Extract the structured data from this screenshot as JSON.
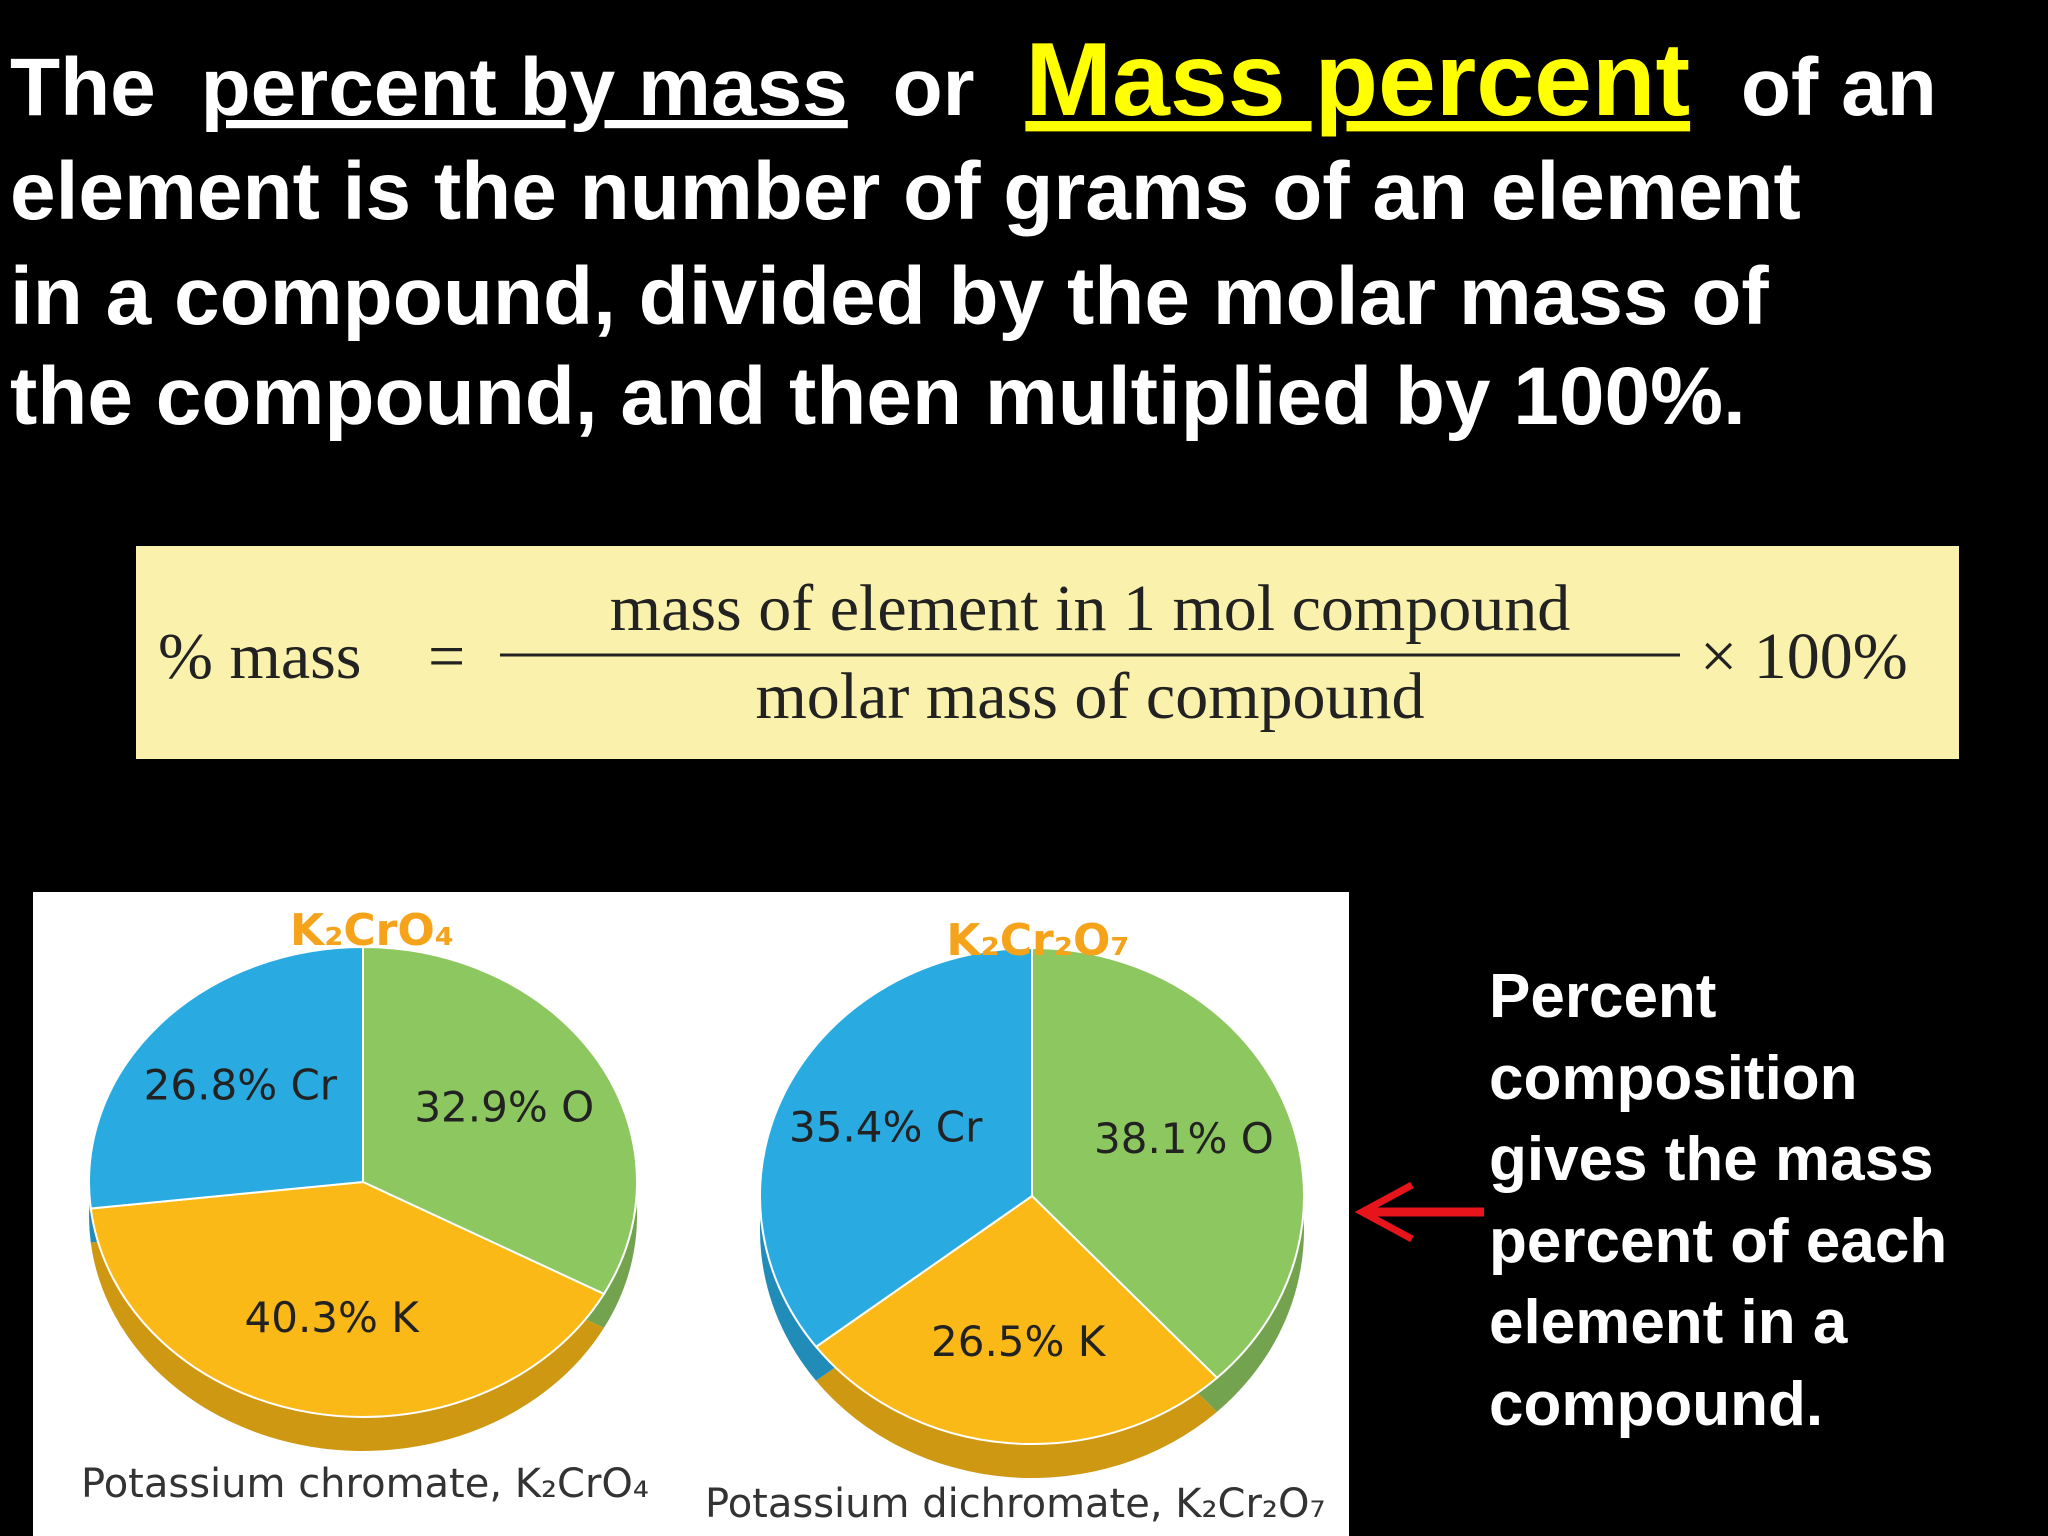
{
  "heading": {
    "line1": [
      "The",
      "percent by mass",
      "or",
      "Mass percent",
      "of an"
    ],
    "lines": [
      "element is the number of grams of an element",
      "in a compound, divided by the molar mass of",
      "the compound, and then multiplied by 100%."
    ]
  },
  "formula": {
    "lhs": "% mass",
    "equals": "=",
    "numerator": "mass of element in 1 mol compound",
    "denominator": "molar mass of compound",
    "factor": "× 100%"
  },
  "side_note": {
    "lines": [
      "Percent",
      "composition",
      "gives the mass",
      "percent of each",
      "element in a",
      "compound."
    ]
  },
  "chart_data": [
    {
      "type": "pie",
      "title": "K₂CrO₄",
      "caption": "Potassium chromate, K₂CrO₄",
      "values": [
        32.9,
        40.3,
        26.8
      ],
      "value_labels": [
        "32.9% O",
        "40.3% K",
        "26.8% Cr"
      ],
      "colors": [
        "#8dc760",
        "#fbb917",
        "#29abe2"
      ]
    },
    {
      "type": "pie",
      "title": "K₂Cr₂O₇",
      "caption": "Potassium dichromate, K₂Cr₂O₇",
      "values": [
        38.1,
        26.5,
        35.4
      ],
      "value_labels": [
        "38.1% O",
        "26.5% K",
        "35.4% Cr"
      ],
      "colors": [
        "#8dc760",
        "#fbb917",
        "#29abe2"
      ]
    }
  ]
}
